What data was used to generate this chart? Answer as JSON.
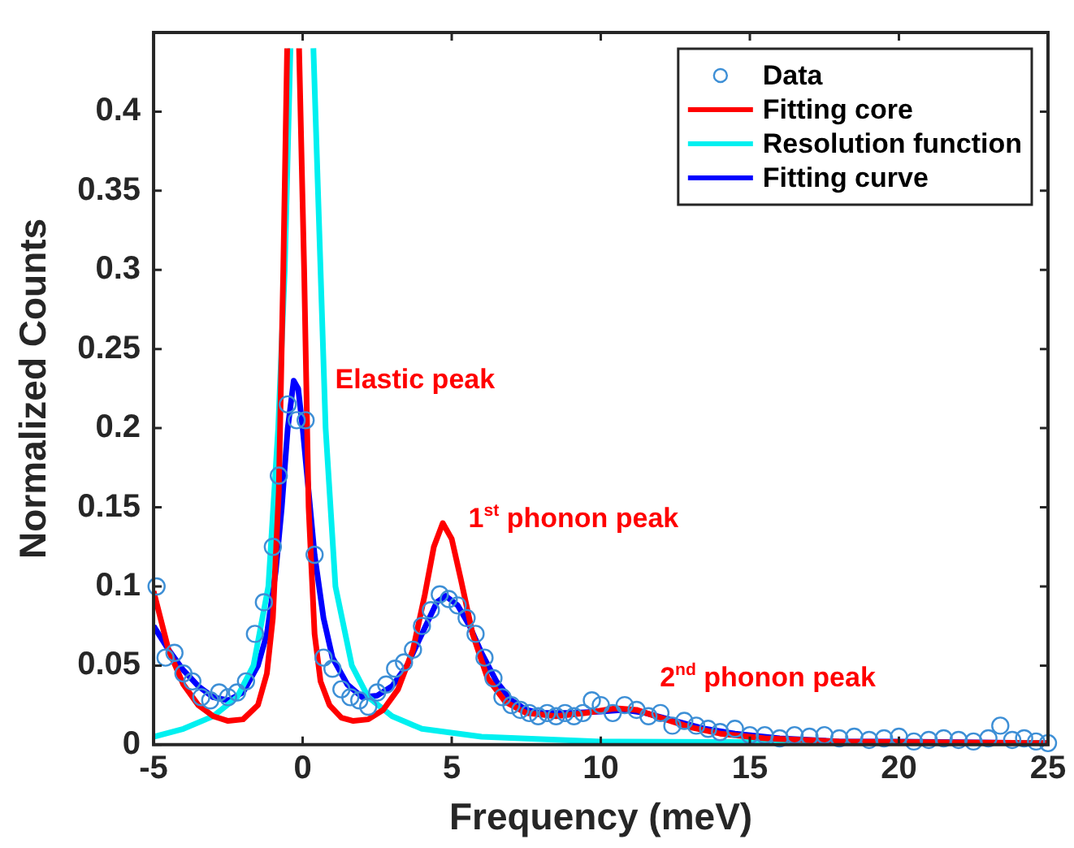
{
  "chart_data": {
    "type": "line",
    "xlabel": "Frequency (meV)",
    "ylabel": "Normalized Counts",
    "xlim": [
      -5,
      25
    ],
    "xticks": [
      -5,
      0,
      5,
      10,
      15,
      20,
      25
    ],
    "ylim": [
      0,
      0.45
    ],
    "yticks": [
      0,
      0.05,
      0.1,
      0.15,
      0.2,
      0.25,
      0.3,
      0.35,
      0.4
    ],
    "grid": false,
    "legend": "top right",
    "series": [
      {
        "name": "Data",
        "type": "scatter",
        "marker": "circle",
        "color": "#3d8fd6",
        "x": [
          -4.9,
          -4.6,
          -4.3,
          -4.0,
          -3.7,
          -3.4,
          -3.1,
          -2.8,
          -2.5,
          -2.2,
          -1.9,
          -1.6,
          -1.3,
          -1.0,
          -0.8,
          -0.5,
          -0.2,
          0.1,
          0.4,
          0.7,
          1.0,
          1.3,
          1.6,
          1.9,
          2.2,
          2.5,
          2.8,
          3.1,
          3.4,
          3.7,
          4.0,
          4.3,
          4.6,
          4.9,
          5.2,
          5.5,
          5.8,
          6.1,
          6.4,
          6.7,
          7.0,
          7.3,
          7.6,
          7.9,
          8.2,
          8.5,
          8.8,
          9.1,
          9.4,
          9.7,
          10,
          10.4,
          10.8,
          11.2,
          11.6,
          12,
          12.4,
          12.8,
          13.2,
          13.6,
          14,
          14.5,
          15,
          15.5,
          16,
          16.5,
          17,
          17.5,
          18,
          18.5,
          19,
          19.5,
          20,
          20.5,
          21,
          21.5,
          22,
          22.5,
          23,
          23.4,
          23.8,
          24.2,
          24.6,
          25
        ],
        "values": [
          0.1,
          0.055,
          0.058,
          0.045,
          0.04,
          0.03,
          0.028,
          0.033,
          0.03,
          0.033,
          0.04,
          0.07,
          0.09,
          0.125,
          0.17,
          0.215,
          0.205,
          0.205,
          0.12,
          0.055,
          0.048,
          0.035,
          0.03,
          0.028,
          0.024,
          0.033,
          0.038,
          0.048,
          0.052,
          0.06,
          0.075,
          0.085,
          0.095,
          0.092,
          0.088,
          0.08,
          0.07,
          0.055,
          0.042,
          0.03,
          0.025,
          0.022,
          0.02,
          0.018,
          0.02,
          0.018,
          0.02,
          0.018,
          0.02,
          0.028,
          0.025,
          0.02,
          0.025,
          0.022,
          0.018,
          0.02,
          0.012,
          0.015,
          0.012,
          0.01,
          0.008,
          0.01,
          0.006,
          0.006,
          0.004,
          0.006,
          0.005,
          0.006,
          0.004,
          0.005,
          0.003,
          0.004,
          0.005,
          0.002,
          0.003,
          0.004,
          0.003,
          0.002,
          0.004,
          0.012,
          0.003,
          0.004,
          0.002,
          0.001
        ]
      },
      {
        "name": "Fitting core",
        "color": "#ff0000",
        "x": [
          -5,
          -4.5,
          -4,
          -3.5,
          -3,
          -2.5,
          -2,
          -1.5,
          -1.2,
          -1,
          -0.8,
          -0.65,
          -0.52,
          -0.3,
          -0.12,
          0.05,
          0.2,
          0.4,
          0.6,
          0.9,
          1.3,
          1.7,
          2.2,
          2.7,
          3.2,
          3.7,
          4.1,
          4.4,
          4.7,
          5,
          5.3,
          5.7,
          6.2,
          6.8,
          7.5,
          8.5,
          9.5,
          10.5,
          11.2,
          12,
          13,
          14,
          15.5,
          18,
          25
        ],
        "values": [
          0.097,
          0.06,
          0.038,
          0.025,
          0.018,
          0.015,
          0.016,
          0.025,
          0.045,
          0.08,
          0.16,
          0.3,
          0.44,
          null,
          0.44,
          0.3,
          0.15,
          0.07,
          0.04,
          0.025,
          0.017,
          0.015,
          0.016,
          0.022,
          0.035,
          0.06,
          0.095,
          0.125,
          0.14,
          0.13,
          0.105,
          0.07,
          0.042,
          0.027,
          0.02,
          0.018,
          0.02,
          0.023,
          0.022,
          0.017,
          0.011,
          0.007,
          0.004,
          0.002,
          0.001
        ]
      },
      {
        "name": "Resolution function",
        "color": "#00f0f0",
        "x": [
          -5,
          -4,
          -3,
          -2.2,
          -1.65,
          -1.15,
          -0.82,
          -0.6,
          -0.41,
          0,
          0.36,
          0.6,
          0.77,
          1.1,
          1.65,
          2.2,
          3,
          4,
          6,
          10,
          25
        ],
        "values": [
          0.005,
          0.01,
          0.018,
          0.03,
          0.05,
          0.1,
          0.2,
          0.3,
          0.44,
          null,
          0.44,
          0.3,
          0.2,
          0.1,
          0.05,
          0.03,
          0.018,
          0.01,
          0.005,
          0.002,
          0.001
        ]
      },
      {
        "name": "Fitting curve",
        "color": "#0000ff",
        "x": [
          -5,
          -4.5,
          -4,
          -3.5,
          -3,
          -2.5,
          -2,
          -1.5,
          -1.2,
          -0.9,
          -0.7,
          -0.5,
          -0.3,
          -0.15,
          0,
          0.2,
          0.4,
          0.7,
          1,
          1.5,
          2,
          2.5,
          3,
          3.5,
          4,
          4.5,
          4.8,
          5.2,
          5.6,
          6,
          6.5,
          7,
          7.5,
          8,
          9,
          10,
          10.8,
          11.5,
          12.5,
          13.5,
          14.5,
          16,
          18,
          20,
          25
        ],
        "values": [
          0.075,
          0.06,
          0.047,
          0.037,
          0.03,
          0.028,
          0.033,
          0.05,
          0.07,
          0.11,
          0.15,
          0.2,
          0.23,
          0.225,
          0.2,
          0.16,
          0.12,
          0.08,
          0.055,
          0.038,
          0.03,
          0.031,
          0.037,
          0.05,
          0.07,
          0.09,
          0.094,
          0.088,
          0.075,
          0.058,
          0.04,
          0.028,
          0.022,
          0.02,
          0.02,
          0.021,
          0.022,
          0.02,
          0.015,
          0.01,
          0.007,
          0.004,
          0.002,
          0.002,
          0.001
        ]
      }
    ],
    "annotations": [
      "Elastic peak",
      "1$^{st}$ phonon peak",
      "2$^{nd}$ phonon peak"
    ]
  }
}
